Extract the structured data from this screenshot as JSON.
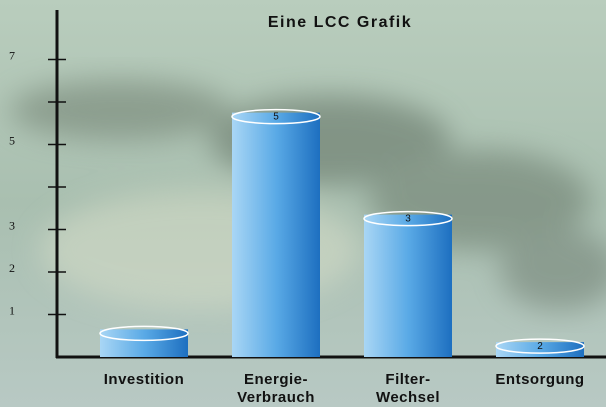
{
  "chart_data": {
    "type": "bar",
    "title": "Eine LCC Grafik",
    "categories": [
      "Investition",
      "Energie-\nVerbrauch",
      "Filter-\nWechsel",
      "Entsorgung"
    ],
    "values": [
      0.65,
      5.75,
      3.35,
      0.35
    ],
    "bar_annotations": [
      null,
      "5",
      "3",
      "2"
    ],
    "color": "#3a8fd6",
    "ylim": [
      0,
      8.2
    ],
    "yticks": [
      1,
      2,
      3,
      {
        "value": 4,
        "label": null
      },
      5,
      {
        "value": 6,
        "label": null
      },
      7
    ]
  }
}
